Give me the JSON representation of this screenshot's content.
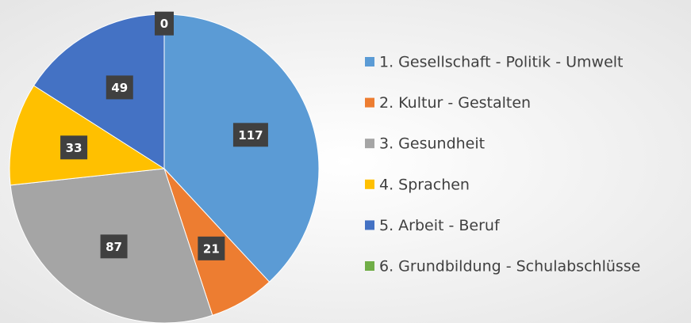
{
  "chart_data": {
    "type": "pie",
    "categories": [
      "1. Gesellschaft - Politik - Umwelt",
      "2. Kultur - Gestalten",
      "3. Gesundheit",
      "4. Sprachen",
      "5. Arbeit - Beruf",
      "6. Grundbildung - Schulabschlüsse"
    ],
    "values": [
      117,
      21,
      87,
      33,
      49,
      0
    ],
    "colors": [
      "#5b9bd5",
      "#ed7d31",
      "#a5a5a5",
      "#ffc000",
      "#4472c4",
      "#70ad47"
    ],
    "legend": "right"
  }
}
